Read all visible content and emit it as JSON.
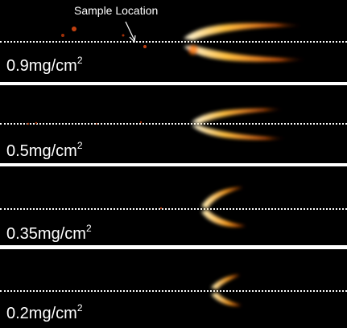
{
  "annotation": {
    "text": "Sample Location"
  },
  "panels": [
    {
      "value": "0.9mg/cm",
      "exp": "2"
    },
    {
      "value": "0.5mg/cm",
      "exp": "2"
    },
    {
      "value": "0.35mg/cm",
      "exp": "2"
    },
    {
      "value": "0.2mg/cm",
      "exp": "2"
    }
  ],
  "colors": {
    "flame_core": "#fff6d0",
    "flame_mid": "#ffb020",
    "flame_edge": "#d04800",
    "background": "#000000",
    "divider": "#ffffff"
  }
}
